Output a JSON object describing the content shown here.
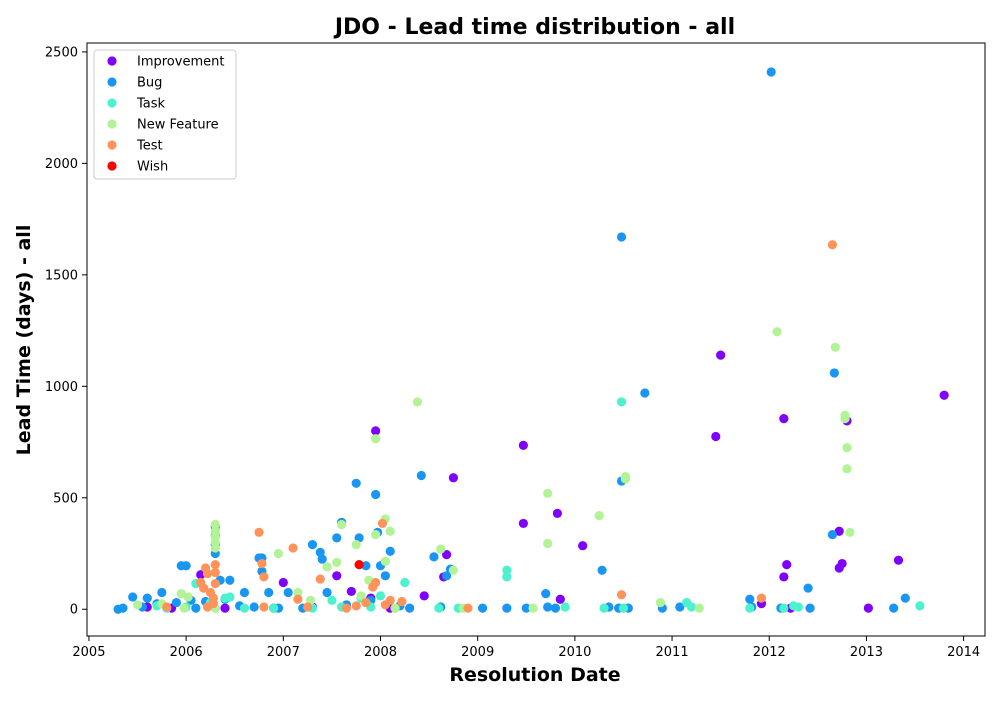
{
  "chart_data": {
    "type": "scatter",
    "title": "JDO - Lead time distribution - all",
    "xlabel": "Resolution Date",
    "ylabel": "Lead Time (days) - all",
    "x_type": "year",
    "xlim": [
      2004.98,
      2014.22
    ],
    "ylim": [
      -120,
      2540
    ],
    "x_ticks": [
      2005,
      2006,
      2007,
      2008,
      2009,
      2010,
      2011,
      2012,
      2013,
      2014
    ],
    "x_tick_labels": [
      "2005",
      "2006",
      "2007",
      "2008",
      "2009",
      "2010",
      "2011",
      "2012",
      "2013",
      "2014"
    ],
    "y_ticks": [
      0,
      500,
      1000,
      1500,
      2000,
      2500
    ],
    "y_tick_labels": [
      "0",
      "500",
      "1000",
      "1500",
      "2000",
      "2500"
    ],
    "legend_position": "top-left",
    "grid": false,
    "series": [
      {
        "name": "Improvement",
        "color": "#8000ff",
        "points": [
          [
            2005.6,
            10
          ],
          [
            2005.85,
            5
          ],
          [
            2006.15,
            155
          ],
          [
            2006.4,
            5
          ],
          [
            2006.9,
            5
          ],
          [
            2007.0,
            120
          ],
          [
            2007.3,
            10
          ],
          [
            2007.55,
            150
          ],
          [
            2007.7,
            80
          ],
          [
            2007.95,
            800
          ],
          [
            2007.9,
            50
          ],
          [
            2008.1,
            5
          ],
          [
            2008.45,
            60
          ],
          [
            2008.65,
            145
          ],
          [
            2008.68,
            245
          ],
          [
            2008.75,
            590
          ],
          [
            2009.47,
            735
          ],
          [
            2009.47,
            385
          ],
          [
            2009.82,
            430
          ],
          [
            2009.85,
            45
          ],
          [
            2010.08,
            285
          ],
          [
            2011.5,
            1140
          ],
          [
            2011.45,
            775
          ],
          [
            2011.92,
            25
          ],
          [
            2012.15,
            855
          ],
          [
            2012.15,
            145
          ],
          [
            2012.18,
            200
          ],
          [
            2012.22,
            5
          ],
          [
            2012.72,
            350
          ],
          [
            2012.72,
            185
          ],
          [
            2012.75,
            205
          ],
          [
            2012.8,
            845
          ],
          [
            2013.02,
            5
          ],
          [
            2013.33,
            220
          ],
          [
            2013.8,
            960
          ]
        ]
      },
      {
        "name": "Bug",
        "color": "#1996f3",
        "points": [
          [
            2005.3,
            0
          ],
          [
            2005.35,
            5
          ],
          [
            2005.45,
            55
          ],
          [
            2005.55,
            10
          ],
          [
            2005.6,
            50
          ],
          [
            2005.7,
            25
          ],
          [
            2005.75,
            75
          ],
          [
            2005.9,
            30
          ],
          [
            2005.95,
            195
          ],
          [
            2006.0,
            195
          ],
          [
            2006.05,
            40
          ],
          [
            2006.1,
            5
          ],
          [
            2006.2,
            35
          ],
          [
            2006.3,
            250
          ],
          [
            2006.3,
            290
          ],
          [
            2006.3,
            330
          ],
          [
            2006.3,
            370
          ],
          [
            2006.35,
            130
          ],
          [
            2006.4,
            45
          ],
          [
            2006.45,
            130
          ],
          [
            2006.55,
            15
          ],
          [
            2006.6,
            75
          ],
          [
            2006.7,
            10
          ],
          [
            2006.75,
            230
          ],
          [
            2006.78,
            230
          ],
          [
            2006.78,
            170
          ],
          [
            2006.85,
            75
          ],
          [
            2006.95,
            5
          ],
          [
            2007.05,
            75
          ],
          [
            2007.2,
            5
          ],
          [
            2007.3,
            290
          ],
          [
            2007.38,
            255
          ],
          [
            2007.4,
            225
          ],
          [
            2007.45,
            75
          ],
          [
            2007.55,
            320
          ],
          [
            2007.6,
            390
          ],
          [
            2007.65,
            20
          ],
          [
            2007.75,
            565
          ],
          [
            2007.78,
            320
          ],
          [
            2007.85,
            195
          ],
          [
            2007.9,
            40
          ],
          [
            2007.95,
            515
          ],
          [
            2007.97,
            345
          ],
          [
            2008.0,
            195
          ],
          [
            2008.05,
            150
          ],
          [
            2008.1,
            260
          ],
          [
            2008.2,
            15
          ],
          [
            2008.3,
            5
          ],
          [
            2008.42,
            600
          ],
          [
            2008.55,
            235
          ],
          [
            2008.62,
            10
          ],
          [
            2008.68,
            150
          ],
          [
            2008.72,
            180
          ],
          [
            2009.05,
            5
          ],
          [
            2009.3,
            5
          ],
          [
            2009.5,
            5
          ],
          [
            2009.7,
            70
          ],
          [
            2009.72,
            10
          ],
          [
            2009.8,
            5
          ],
          [
            2010.28,
            175
          ],
          [
            2010.35,
            10
          ],
          [
            2010.45,
            5
          ],
          [
            2010.48,
            1670
          ],
          [
            2010.48,
            575
          ],
          [
            2010.55,
            5
          ],
          [
            2010.72,
            970
          ],
          [
            2010.9,
            5
          ],
          [
            2011.08,
            10
          ],
          [
            2011.8,
            45
          ],
          [
            2011.82,
            10
          ],
          [
            2012.02,
            2410
          ],
          [
            2012.12,
            5
          ],
          [
            2012.4,
            95
          ],
          [
            2012.42,
            5
          ],
          [
            2012.65,
            335
          ],
          [
            2012.67,
            1060
          ],
          [
            2013.28,
            5
          ],
          [
            2013.4,
            50
          ]
        ]
      },
      {
        "name": "Task",
        "color": "#4cf2ce",
        "points": [
          [
            2005.7,
            15
          ],
          [
            2005.8,
            5
          ],
          [
            2006.0,
            10
          ],
          [
            2006.1,
            115
          ],
          [
            2006.25,
            30
          ],
          [
            2006.3,
            5
          ],
          [
            2006.4,
            50
          ],
          [
            2006.45,
            55
          ],
          [
            2006.6,
            5
          ],
          [
            2006.9,
            5
          ],
          [
            2007.3,
            5
          ],
          [
            2007.5,
            40
          ],
          [
            2007.6,
            10
          ],
          [
            2007.8,
            50
          ],
          [
            2007.9,
            10
          ],
          [
            2008.0,
            60
          ],
          [
            2008.15,
            5
          ],
          [
            2008.25,
            120
          ],
          [
            2008.6,
            5
          ],
          [
            2008.8,
            5
          ],
          [
            2009.3,
            175
          ],
          [
            2009.3,
            145
          ],
          [
            2009.9,
            10
          ],
          [
            2010.3,
            5
          ],
          [
            2010.48,
            930
          ],
          [
            2010.5,
            5
          ],
          [
            2011.15,
            30
          ],
          [
            2011.2,
            10
          ],
          [
            2011.8,
            5
          ],
          [
            2012.15,
            5
          ],
          [
            2012.25,
            15
          ],
          [
            2012.3,
            10
          ],
          [
            2013.55,
            15
          ]
        ]
      },
      {
        "name": "New Feature",
        "color": "#b2f396",
        "points": [
          [
            2005.5,
            20
          ],
          [
            2005.75,
            25
          ],
          [
            2005.95,
            70
          ],
          [
            2005.98,
            5
          ],
          [
            2006.02,
            55
          ],
          [
            2006.3,
            380
          ],
          [
            2006.3,
            350
          ],
          [
            2006.3,
            325
          ],
          [
            2006.3,
            300
          ],
          [
            2006.3,
            275
          ],
          [
            2006.3,
            5
          ],
          [
            2006.95,
            250
          ],
          [
            2007.15,
            75
          ],
          [
            2007.28,
            40
          ],
          [
            2007.45,
            190
          ],
          [
            2007.55,
            210
          ],
          [
            2007.6,
            380
          ],
          [
            2007.75,
            290
          ],
          [
            2007.8,
            60
          ],
          [
            2007.88,
            130
          ],
          [
            2007.95,
            765
          ],
          [
            2007.95,
            335
          ],
          [
            2008.05,
            405
          ],
          [
            2008.05,
            215
          ],
          [
            2008.1,
            350
          ],
          [
            2008.15,
            5
          ],
          [
            2008.38,
            930
          ],
          [
            2008.62,
            270
          ],
          [
            2008.75,
            175
          ],
          [
            2008.85,
            5
          ],
          [
            2009.57,
            5
          ],
          [
            2009.72,
            520
          ],
          [
            2009.72,
            295
          ],
          [
            2010.25,
            420
          ],
          [
            2010.52,
            595
          ],
          [
            2010.52,
            585
          ],
          [
            2010.88,
            30
          ],
          [
            2011.28,
            5
          ],
          [
            2012.08,
            1245
          ],
          [
            2012.68,
            1175
          ],
          [
            2012.78,
            870
          ],
          [
            2012.78,
            855
          ],
          [
            2012.8,
            725
          ],
          [
            2012.8,
            630
          ],
          [
            2012.83,
            345
          ]
        ]
      },
      {
        "name": "Test",
        "color": "#ff9359",
        "points": [
          [
            2005.8,
            10
          ],
          [
            2006.15,
            120
          ],
          [
            2006.18,
            95
          ],
          [
            2006.2,
            185
          ],
          [
            2006.22,
            160
          ],
          [
            2006.22,
            10
          ],
          [
            2006.25,
            75
          ],
          [
            2006.28,
            50
          ],
          [
            2006.28,
            25
          ],
          [
            2006.3,
            200
          ],
          [
            2006.3,
            165
          ],
          [
            2006.3,
            115
          ],
          [
            2006.75,
            345
          ],
          [
            2006.78,
            205
          ],
          [
            2006.8,
            145
          ],
          [
            2006.8,
            10
          ],
          [
            2007.1,
            275
          ],
          [
            2007.15,
            45
          ],
          [
            2007.25,
            10
          ],
          [
            2007.38,
            135
          ],
          [
            2007.65,
            5
          ],
          [
            2007.75,
            15
          ],
          [
            2007.85,
            30
          ],
          [
            2007.92,
            100
          ],
          [
            2007.95,
            120
          ],
          [
            2008.02,
            385
          ],
          [
            2008.05,
            20
          ],
          [
            2008.1,
            40
          ],
          [
            2008.22,
            35
          ],
          [
            2008.9,
            5
          ],
          [
            2010.48,
            65
          ],
          [
            2011.92,
            50
          ],
          [
            2012.65,
            1635
          ]
        ]
      },
      {
        "name": "Wish",
        "color": "#ff0000",
        "points": [
          [
            2007.78,
            200
          ]
        ]
      }
    ]
  }
}
